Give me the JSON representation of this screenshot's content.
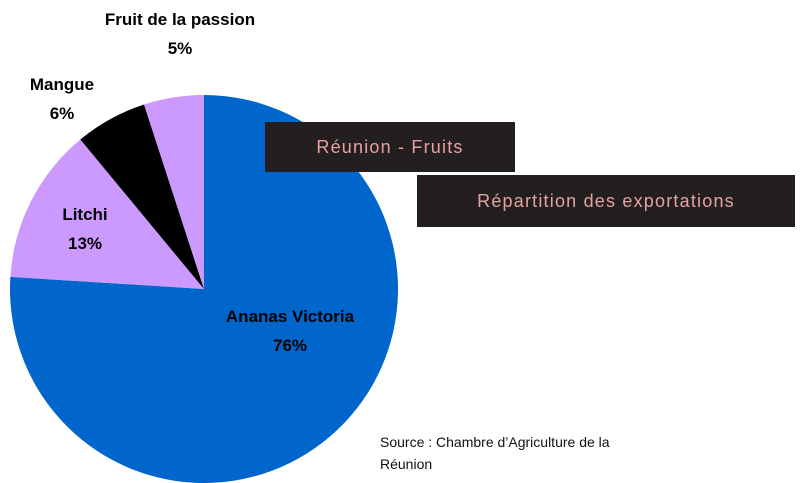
{
  "chart_data": {
    "type": "pie",
    "title": "Réunion - Fruits",
    "subtitle": "Répartition des exportations",
    "categories": [
      "Ananas Victoria",
      "Litchi",
      "Mangue",
      "Fruit de la passion"
    ],
    "values": [
      76,
      13,
      6,
      5
    ],
    "value_labels": [
      "76%",
      "13%",
      "6%",
      "5%"
    ],
    "colors": [
      "#0066cc",
      "#cc99ff",
      "#000000",
      "#cc99ff"
    ],
    "source": "Source : Chambre d’Agriculture de la Réunion"
  }
}
